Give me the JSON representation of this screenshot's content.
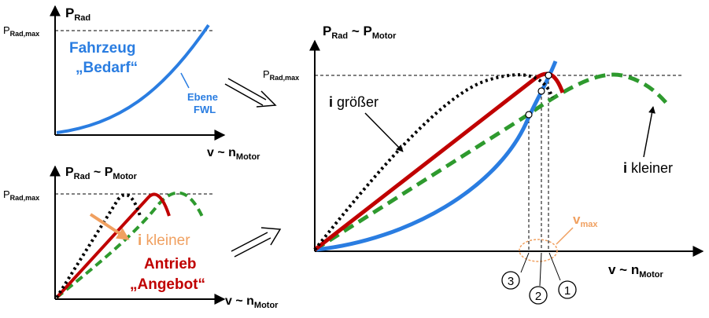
{
  "colors": {
    "demand": "#2a7de1",
    "supply": "#c00000",
    "green": "#2e9a2e",
    "dotted": "#000000",
    "orange": "#f0a060",
    "axis": "#000000"
  },
  "panel_top": {
    "y_axis": {
      "main": "P",
      "sub": "Rad"
    },
    "x_axis": {
      "main": "v ~ n",
      "sub": "Motor"
    },
    "ref_line": {
      "main": "P",
      "sub": "Rad,max"
    },
    "title_line1": "Fahrzeug",
    "title_line2": "„Bedarf“",
    "curve_label_line1": "Ebene",
    "curve_label_line2": "FWL"
  },
  "panel_bottom": {
    "y_axis": {
      "main1": "P",
      "sub1": "Rad",
      "mid": " ~ ",
      "main2": "P",
      "sub2": "Motor"
    },
    "x_axis": {
      "main": "v ~ n",
      "sub": "Motor"
    },
    "ref_line": {
      "main": "P",
      "sub": "Rad,max"
    },
    "ratio_symbol": "i",
    "ratio_text": " kleiner",
    "title_line1": "Antrieb",
    "title_line2": "„Angebot“"
  },
  "panel_main": {
    "y_axis": {
      "main1": "P",
      "sub1": "Rad",
      "mid": " ~ ",
      "main2": "P",
      "sub2": "Motor"
    },
    "x_axis": {
      "main": "v ~ n",
      "sub": "Motor"
    },
    "ref_line": {
      "main": "P",
      "sub": "Rad,max"
    },
    "label_larger_symbol": "i",
    "label_larger_text": " größer",
    "label_smaller_symbol": "i",
    "label_smaller_text": " kleiner",
    "vmax": {
      "main": "v",
      "sub": "max"
    },
    "markers": [
      "3",
      "2",
      "1"
    ]
  }
}
